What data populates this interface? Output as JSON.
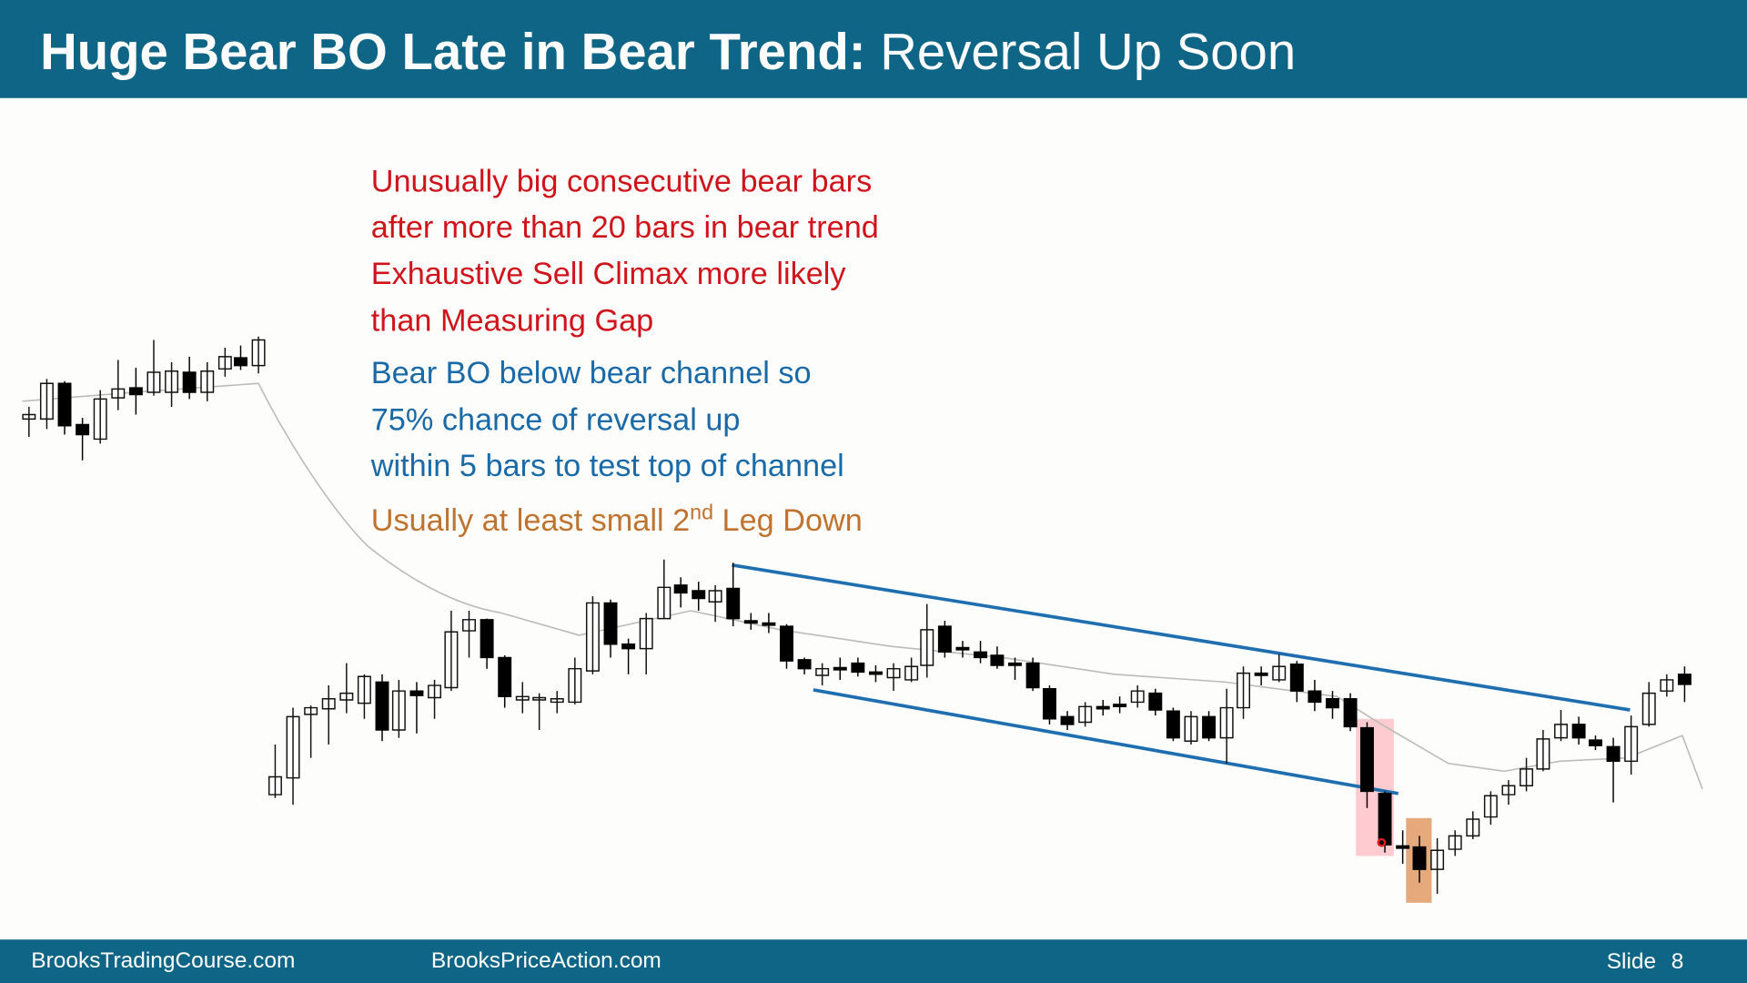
{
  "header": {
    "title_bold": "Huge Bear BO Late in Bear Trend:",
    "title_rest": "Reversal Up Soon"
  },
  "notes": {
    "red": [
      "Unusually big consecutive bear bars",
      "after more than 20 bars in bear trend",
      "Exhaustive Sell Climax more likely",
      "than Measuring Gap"
    ],
    "blue": [
      "Bear BO below bear channel so",
      "75% chance of reversal up",
      "within 5 bars to test top of channel"
    ],
    "orange": {
      "before": "Usually at least small 2",
      "sup": "nd",
      "after": " Leg Down"
    }
  },
  "footer": {
    "left": "BrooksTradingCourse.com",
    "center": "BrooksPriceAction.com",
    "slide_label": "Slide",
    "slide_number": "8"
  }
}
